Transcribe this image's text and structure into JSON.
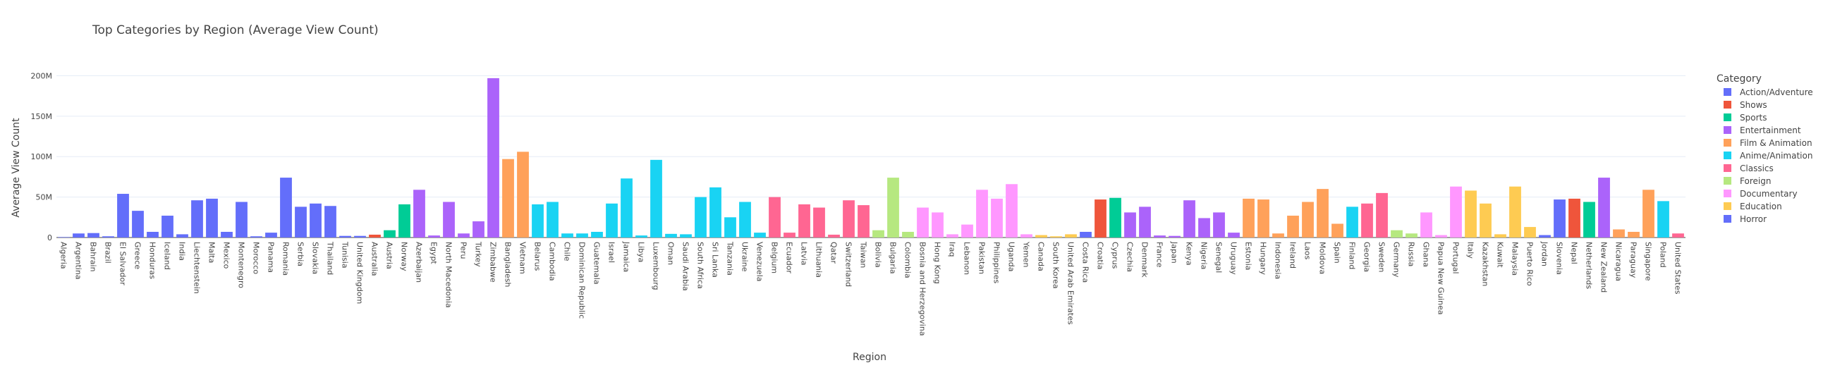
{
  "chart_data": {
    "type": "bar",
    "title": "Top Categories by Region (Average View Count)",
    "xlabel": "Region",
    "ylabel": "Average View Count",
    "ylim": [
      0,
      210000000
    ],
    "yticks": [
      {
        "value": 0,
        "label": "0"
      },
      {
        "value": 50000000,
        "label": "50M"
      },
      {
        "value": 100000000,
        "label": "100M"
      },
      {
        "value": 150000000,
        "label": "150M"
      },
      {
        "value": 200000000,
        "label": "200M"
      }
    ],
    "grid": true,
    "legend_title": "Category",
    "legend_position": "right",
    "legend": [
      {
        "name": "Action/Adventure",
        "color": "#636efa"
      },
      {
        "name": "Shows",
        "color": "#ef553b"
      },
      {
        "name": "Sports",
        "color": "#00cc96"
      },
      {
        "name": "Entertainment",
        "color": "#ab63fa"
      },
      {
        "name": "Film & Animation",
        "color": "#ffa15a"
      },
      {
        "name": "Anime/Animation",
        "color": "#19d3f3"
      },
      {
        "name": "Classics",
        "color": "#ff6692"
      },
      {
        "name": "Foreign",
        "color": "#b6e880"
      },
      {
        "name": "Documentary",
        "color": "#ff97ff"
      },
      {
        "name": "Education",
        "color": "#fecb52"
      },
      {
        "name": "Horror",
        "color": "#636efa"
      }
    ],
    "bars": [
      {
        "region": "Algeria",
        "value": 600000,
        "category": "Action/Adventure"
      },
      {
        "region": "Argentina",
        "value": 5000000,
        "category": "Action/Adventure"
      },
      {
        "region": "Bahrain",
        "value": 5500000,
        "category": "Action/Adventure"
      },
      {
        "region": "Brazil",
        "value": 1500000,
        "category": "Action/Adventure"
      },
      {
        "region": "El Salvador",
        "value": 54000000,
        "category": "Action/Adventure"
      },
      {
        "region": "Greece",
        "value": 33000000,
        "category": "Action/Adventure"
      },
      {
        "region": "Honduras",
        "value": 7000000,
        "category": "Action/Adventure"
      },
      {
        "region": "Iceland",
        "value": 27000000,
        "category": "Action/Adventure"
      },
      {
        "region": "India",
        "value": 4000000,
        "category": "Action/Adventure"
      },
      {
        "region": "Liechtenstein",
        "value": 46000000,
        "category": "Action/Adventure"
      },
      {
        "region": "Malta",
        "value": 48000000,
        "category": "Action/Adventure"
      },
      {
        "region": "Mexico",
        "value": 7000000,
        "category": "Action/Adventure"
      },
      {
        "region": "Montenegro",
        "value": 44000000,
        "category": "Action/Adventure"
      },
      {
        "region": "Morocco",
        "value": 1500000,
        "category": "Action/Adventure"
      },
      {
        "region": "Panama",
        "value": 6000000,
        "category": "Action/Adventure"
      },
      {
        "region": "Romania",
        "value": 74000000,
        "category": "Action/Adventure"
      },
      {
        "region": "Serbia",
        "value": 38000000,
        "category": "Action/Adventure"
      },
      {
        "region": "Slovakia",
        "value": 42000000,
        "category": "Action/Adventure"
      },
      {
        "region": "Thailand",
        "value": 39000000,
        "category": "Action/Adventure"
      },
      {
        "region": "Tunisia",
        "value": 2000000,
        "category": "Action/Adventure"
      },
      {
        "region": "United Kingdom",
        "value": 2000000,
        "category": "Action/Adventure"
      },
      {
        "region": "Australia",
        "value": 3500000,
        "category": "Shows"
      },
      {
        "region": "Austria",
        "value": 9000000,
        "category": "Sports"
      },
      {
        "region": "Norway",
        "value": 41000000,
        "category": "Sports"
      },
      {
        "region": "Azerbaijan",
        "value": 59000000,
        "category": "Entertainment"
      },
      {
        "region": "Egypt",
        "value": 2500000,
        "category": "Entertainment"
      },
      {
        "region": "North Macedonia",
        "value": 44000000,
        "category": "Entertainment"
      },
      {
        "region": "Peru",
        "value": 5000000,
        "category": "Entertainment"
      },
      {
        "region": "Turkey",
        "value": 20000000,
        "category": "Entertainment"
      },
      {
        "region": "Zimbabwe",
        "value": 197000000,
        "category": "Entertainment"
      },
      {
        "region": "Bangladesh",
        "value": 97000000,
        "category": "Film & Animation"
      },
      {
        "region": "Vietnam",
        "value": 106000000,
        "category": "Film & Animation"
      },
      {
        "region": "Belarus",
        "value": 41000000,
        "category": "Anime/Animation"
      },
      {
        "region": "Cambodia",
        "value": 44000000,
        "category": "Anime/Animation"
      },
      {
        "region": "Chile",
        "value": 5000000,
        "category": "Anime/Animation"
      },
      {
        "region": "Dominican Republic",
        "value": 5000000,
        "category": "Anime/Animation"
      },
      {
        "region": "Guatemala",
        "value": 7000000,
        "category": "Anime/Animation"
      },
      {
        "region": "Israel",
        "value": 42000000,
        "category": "Anime/Animation"
      },
      {
        "region": "Jamaica",
        "value": 73000000,
        "category": "Anime/Animation"
      },
      {
        "region": "Libya",
        "value": 2500000,
        "category": "Anime/Animation"
      },
      {
        "region": "Luxembourg",
        "value": 96000000,
        "category": "Anime/Animation"
      },
      {
        "region": "Oman",
        "value": 4500000,
        "category": "Anime/Animation"
      },
      {
        "region": "Saudi Arabia",
        "value": 4000000,
        "category": "Anime/Animation"
      },
      {
        "region": "South Africa",
        "value": 50000000,
        "category": "Anime/Animation"
      },
      {
        "region": "Sri Lanka",
        "value": 62000000,
        "category": "Anime/Animation"
      },
      {
        "region": "Tanzania",
        "value": 25000000,
        "category": "Anime/Animation"
      },
      {
        "region": "Ukraine",
        "value": 44000000,
        "category": "Anime/Animation"
      },
      {
        "region": "Venezuela",
        "value": 6000000,
        "category": "Anime/Animation"
      },
      {
        "region": "Belgium",
        "value": 50000000,
        "category": "Classics"
      },
      {
        "region": "Ecuador",
        "value": 6000000,
        "category": "Classics"
      },
      {
        "region": "Latvia",
        "value": 41000000,
        "category": "Classics"
      },
      {
        "region": "Lithuania",
        "value": 37000000,
        "category": "Classics"
      },
      {
        "region": "Qatar",
        "value": 3500000,
        "category": "Classics"
      },
      {
        "region": "Switzerland",
        "value": 46000000,
        "category": "Classics"
      },
      {
        "region": "Taiwan",
        "value": 40000000,
        "category": "Classics"
      },
      {
        "region": "Bolivia",
        "value": 9000000,
        "category": "Foreign"
      },
      {
        "region": "Bulgaria",
        "value": 74000000,
        "category": "Foreign"
      },
      {
        "region": "Colombia",
        "value": 7000000,
        "category": "Foreign"
      },
      {
        "region": "Bosnia and Herzegovina",
        "value": 37000000,
        "category": "Documentary"
      },
      {
        "region": "Hong Kong",
        "value": 31000000,
        "category": "Documentary"
      },
      {
        "region": "Iraq",
        "value": 4000000,
        "category": "Documentary"
      },
      {
        "region": "Lebanon",
        "value": 16000000,
        "category": "Documentary"
      },
      {
        "region": "Pakistan",
        "value": 59000000,
        "category": "Documentary"
      },
      {
        "region": "Philippines",
        "value": 48000000,
        "category": "Documentary"
      },
      {
        "region": "Uganda",
        "value": 66000000,
        "category": "Documentary"
      },
      {
        "region": "Yemen",
        "value": 4000000,
        "category": "Documentary"
      },
      {
        "region": "Canada",
        "value": 3000000,
        "category": "Education"
      },
      {
        "region": "South Korea",
        "value": 1500000,
        "category": "Education"
      },
      {
        "region": "United Arab Emirates",
        "value": 4000000,
        "category": "Education"
      },
      {
        "region": "Costa Rica",
        "value": 7000000,
        "category": "Horror"
      },
      {
        "region": "Croatia",
        "value": 47000000,
        "category": "Shows"
      },
      {
        "region": "Cyprus",
        "value": 49000000,
        "category": "Sports"
      },
      {
        "region": "Czechia",
        "value": 31000000,
        "category": "Entertainment"
      },
      {
        "region": "Denmark",
        "value": 38000000,
        "category": "Entertainment"
      },
      {
        "region": "France",
        "value": 2500000,
        "category": "Entertainment"
      },
      {
        "region": "Japan",
        "value": 2000000,
        "category": "Entertainment"
      },
      {
        "region": "Kenya",
        "value": 46000000,
        "category": "Entertainment"
      },
      {
        "region": "Nigeria",
        "value": 24000000,
        "category": "Entertainment"
      },
      {
        "region": "Senegal",
        "value": 31000000,
        "category": "Entertainment"
      },
      {
        "region": "Uruguay",
        "value": 6000000,
        "category": "Entertainment"
      },
      {
        "region": "Estonia",
        "value": 48000000,
        "category": "Film & Animation"
      },
      {
        "region": "Hungary",
        "value": 47000000,
        "category": "Film & Animation"
      },
      {
        "region": "Indonesia",
        "value": 5000000,
        "category": "Film & Animation"
      },
      {
        "region": "Ireland",
        "value": 27000000,
        "category": "Film & Animation"
      },
      {
        "region": "Laos",
        "value": 44000000,
        "category": "Film & Animation"
      },
      {
        "region": "Moldova",
        "value": 60000000,
        "category": "Film & Animation"
      },
      {
        "region": "Spain",
        "value": 17000000,
        "category": "Film & Animation"
      },
      {
        "region": "Finland",
        "value": 38000000,
        "category": "Anime/Animation"
      },
      {
        "region": "Georgia",
        "value": 42000000,
        "category": "Classics"
      },
      {
        "region": "Sweden",
        "value": 55000000,
        "category": "Classics"
      },
      {
        "region": "Germany",
        "value": 9000000,
        "category": "Foreign"
      },
      {
        "region": "Russia",
        "value": 5000000,
        "category": "Foreign"
      },
      {
        "region": "Ghana",
        "value": 31000000,
        "category": "Documentary"
      },
      {
        "region": "Papua New Guinea",
        "value": 3000000,
        "category": "Documentary"
      },
      {
        "region": "Portugal",
        "value": 63000000,
        "category": "Documentary"
      },
      {
        "region": "Italy",
        "value": 58000000,
        "category": "Education"
      },
      {
        "region": "Kazakhstan",
        "value": 42000000,
        "category": "Education"
      },
      {
        "region": "Kuwait",
        "value": 4000000,
        "category": "Education"
      },
      {
        "region": "Malaysia",
        "value": 63000000,
        "category": "Education"
      },
      {
        "region": "Puerto Rico",
        "value": 13000000,
        "category": "Education"
      },
      {
        "region": "Jordan",
        "value": 3000000,
        "category": "Horror"
      },
      {
        "region": "Slovenia",
        "value": 47000000,
        "category": "Horror"
      },
      {
        "region": "Nepal",
        "value": 48000000,
        "category": "Shows"
      },
      {
        "region": "Netherlands",
        "value": 44000000,
        "category": "Sports"
      },
      {
        "region": "New Zealand",
        "value": 74000000,
        "category": "Entertainment"
      },
      {
        "region": "Nicaragua",
        "value": 10000000,
        "category": "Film & Animation"
      },
      {
        "region": "Paraguay",
        "value": 7000000,
        "category": "Film & Animation"
      },
      {
        "region": "Singapore",
        "value": 59000000,
        "category": "Film & Animation"
      },
      {
        "region": "Poland",
        "value": 45000000,
        "category": "Anime/Animation"
      },
      {
        "region": "United States",
        "value": 5000000,
        "category": "Classics"
      }
    ]
  }
}
